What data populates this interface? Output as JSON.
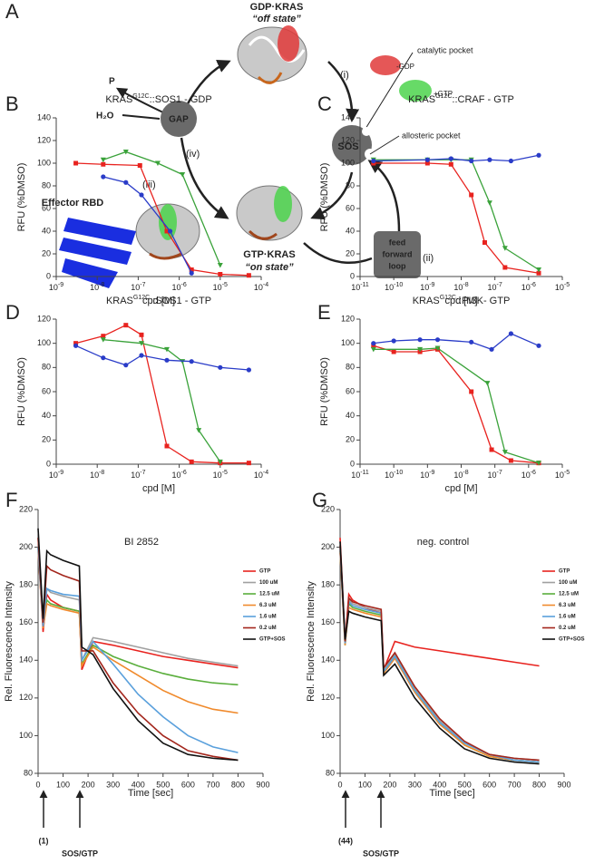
{
  "diagram": {
    "panel": "A",
    "gdp_kras": "GDP·KRAS",
    "off_state": "“off state”",
    "catalytic_pocket": "catalytic pocket",
    "minus_gdp": "-GDP",
    "plus_gtp": "+GTP",
    "step_i": "(i)",
    "sos": "SOS",
    "allosteric_pocket": "allosteric pocket",
    "gap": "GAP",
    "phosphate": "P",
    "water": "H₂O",
    "step_iv": "(iv)",
    "step_iii": "(iii)",
    "effector": "Effector RBD",
    "gtp_kras": "GTP·KRAS",
    "on_state": "“on state”",
    "feed_loop": [
      "feed",
      "forward",
      "loop"
    ],
    "step_ii": "(ii)"
  },
  "chart_data": [
    {
      "type": "scatter",
      "panel": "B",
      "title": [
        "KRAS",
        "G12C",
        "::SOS1 - GDP"
      ],
      "x_label": "cpd [M]",
      "y_label": "RFU (%DMSO)",
      "x_scale": "log",
      "xlim": [
        1e-09,
        0.0001
      ],
      "xticks": [
        {
          "value": 1e-09,
          "label": "10-9"
        },
        {
          "value": 1e-08,
          "label": "10-8"
        },
        {
          "value": 1e-07,
          "label": "10-7"
        },
        {
          "value": 1e-06,
          "label": "10-6"
        },
        {
          "value": 1e-05,
          "label": "10-5"
        },
        {
          "value": 0.0001,
          "label": "10-4"
        }
      ],
      "ylim": [
        0,
        140
      ],
      "yticks": [
        0,
        20,
        40,
        60,
        80,
        100,
        120,
        140
      ],
      "series": [
        {
          "color": "#e8231f",
          "marker": "square",
          "x": [
            3e-09,
            1.4e-08,
            1.1e-07,
            5e-07,
            2e-06,
            1e-05,
            5e-05
          ],
          "values": [
            100,
            99,
            98,
            40,
            6,
            2,
            1
          ]
        },
        {
          "color": "#2a3cc8",
          "marker": "circle",
          "x": [
            1.4e-08,
            5e-08,
            1.2e-07,
            6e-07,
            2e-06
          ],
          "values": [
            88,
            83,
            72,
            40,
            3
          ]
        },
        {
          "color": "#3aa23a",
          "marker": "triangle",
          "x": [
            1.4e-08,
            5e-08,
            3e-07,
            1.2e-06,
            1e-05
          ],
          "values": [
            103,
            110,
            100,
            90,
            10
          ]
        }
      ]
    },
    {
      "type": "scatter",
      "panel": "C",
      "title": [
        "KRAS",
        "G12C",
        "::CRAF - GTP"
      ],
      "x_label": "cpd [M]",
      "y_label": "RFU (%DMSO)",
      "x_scale": "log",
      "xlim": [
        1e-11,
        1e-05
      ],
      "xticks": [
        {
          "value": 1e-11,
          "label": "10-11"
        },
        {
          "value": 1e-10,
          "label": "10-10"
        },
        {
          "value": 1e-09,
          "label": "10-9"
        },
        {
          "value": 1e-08,
          "label": "10-8"
        },
        {
          "value": 1e-07,
          "label": "10-7"
        },
        {
          "value": 1e-06,
          "label": "10-6"
        },
        {
          "value": 1e-05,
          "label": "10-5"
        }
      ],
      "ylim": [
        0,
        140
      ],
      "yticks": [
        0,
        20,
        40,
        60,
        80,
        100,
        120,
        140
      ],
      "series": [
        {
          "color": "#e8231f",
          "marker": "square",
          "x": [
            2.5e-11,
            1e-09,
            5e-09,
            2e-08,
            5e-08,
            2e-07,
            2e-06
          ],
          "values": [
            100,
            100,
            99,
            72,
            30,
            8,
            3
          ]
        },
        {
          "color": "#3aa23a",
          "marker": "triangle",
          "x": [
            2.5e-11,
            1e-09,
            5e-09,
            2e-08,
            7e-08,
            2e-07,
            2e-06
          ],
          "values": [
            103,
            103,
            103,
            103,
            65,
            25,
            6
          ]
        },
        {
          "color": "#2a3cc8",
          "marker": "circle",
          "x": [
            2.5e-11,
            1e-09,
            5e-09,
            2e-08,
            7e-08,
            3e-07,
            2e-06
          ],
          "values": [
            102,
            103,
            104,
            102,
            103,
            102,
            107
          ]
        }
      ]
    },
    {
      "type": "scatter",
      "panel": "D",
      "title": [
        "KRAS",
        "G12C",
        "::SOS1 - GTP"
      ],
      "x_label": "cpd [M]",
      "y_label": "RFU (%DMSO)",
      "x_scale": "log",
      "xlim": [
        1e-09,
        0.0001
      ],
      "xticks": [
        {
          "value": 1e-09,
          "label": "10-9"
        },
        {
          "value": 1e-08,
          "label": "10-8"
        },
        {
          "value": 1e-07,
          "label": "10-7"
        },
        {
          "value": 1e-06,
          "label": "10-6"
        },
        {
          "value": 1e-05,
          "label": "10-5"
        },
        {
          "value": 0.0001,
          "label": "10-4"
        }
      ],
      "ylim": [
        0,
        120
      ],
      "yticks": [
        0,
        20,
        40,
        60,
        80,
        100,
        120
      ],
      "series": [
        {
          "color": "#e8231f",
          "marker": "square",
          "x": [
            3e-09,
            1.4e-08,
            5e-08,
            1.2e-07,
            5e-07,
            2e-06,
            1e-05,
            5e-05
          ],
          "values": [
            100,
            106,
            115,
            107,
            15,
            2,
            1,
            1
          ]
        },
        {
          "color": "#3aa23a",
          "marker": "triangle",
          "x": [
            1.4e-08,
            1.2e-07,
            5e-07,
            1.2e-06,
            3e-06,
            1e-05
          ],
          "values": [
            103,
            100,
            95,
            85,
            28,
            2
          ]
        },
        {
          "color": "#2a3cc8",
          "marker": "circle",
          "x": [
            3e-09,
            1.4e-08,
            5e-08,
            1.2e-07,
            5e-07,
            2e-06,
            1e-05,
            5e-05
          ],
          "values": [
            98,
            88,
            82,
            90,
            86,
            85,
            80,
            78
          ]
        }
      ]
    },
    {
      "type": "scatter",
      "panel": "E",
      "title": [
        "KRAS",
        "G12C",
        "::PI3K- GTP"
      ],
      "x_label": "cpd [M]",
      "y_label": "RFU (%DMSO)",
      "x_scale": "log",
      "xlim": [
        1e-11,
        1e-05
      ],
      "xticks": [
        {
          "value": 1e-11,
          "label": "10-11"
        },
        {
          "value": 1e-10,
          "label": "10-10"
        },
        {
          "value": 1e-09,
          "label": "10-9"
        },
        {
          "value": 1e-08,
          "label": "10-8"
        },
        {
          "value": 1e-07,
          "label": "10-7"
        },
        {
          "value": 1e-06,
          "label": "10-6"
        },
        {
          "value": 1e-05,
          "label": "10-5"
        }
      ],
      "ylim": [
        0,
        120
      ],
      "yticks": [
        0,
        20,
        40,
        60,
        80,
        100,
        120
      ],
      "series": [
        {
          "color": "#e8231f",
          "marker": "square",
          "x": [
            2.5e-11,
            1e-10,
            6e-10,
            2e-09,
            2e-08,
            8e-08,
            3e-07,
            2e-06
          ],
          "values": [
            98,
            93,
            93,
            95,
            60,
            12,
            3,
            1
          ]
        },
        {
          "color": "#3aa23a",
          "marker": "triangle",
          "x": [
            2.5e-11,
            6e-10,
            2e-09,
            6e-08,
            2e-07,
            2e-06
          ],
          "values": [
            95,
            95,
            96,
            67,
            10,
            1
          ]
        },
        {
          "color": "#2a3cc8",
          "marker": "circle",
          "x": [
            2.5e-11,
            1e-10,
            6e-10,
            2e-09,
            2e-08,
            8e-08,
            3e-07,
            2e-06
          ],
          "values": [
            100,
            102,
            103,
            103,
            101,
            95,
            108,
            98
          ]
        }
      ]
    },
    {
      "type": "line",
      "panel": "F",
      "title": "BI 2852",
      "x_label": "Time [sec]",
      "y_label": "Rel. Fluorescence Intensity",
      "annotations": [
        "(1)",
        "SOS/GTP"
      ],
      "xlim": [
        0,
        900
      ],
      "xticks": [
        0,
        100,
        200,
        300,
        400,
        500,
        600,
        700,
        800,
        900
      ],
      "ylim": [
        80,
        220
      ],
      "yticks": [
        80,
        100,
        120,
        140,
        160,
        180,
        200,
        220
      ],
      "x": [
        0,
        20,
        35,
        50,
        100,
        165,
        175,
        220,
        300,
        400,
        500,
        600,
        700,
        800
      ],
      "series": [
        {
          "name": "GTP",
          "color": "#e8231f",
          "values": [
            200,
            155,
            175,
            172,
            168,
            166,
            135,
            150,
            148,
            145,
            142,
            140,
            138,
            136
          ]
        },
        {
          "name": "100 uM",
          "color": "#a0a0a0",
          "values": [
            205,
            160,
            178,
            176,
            174,
            172,
            140,
            152,
            150,
            147,
            144,
            141,
            139,
            137
          ]
        },
        {
          "name": "12.5 uM",
          "color": "#5aae3c",
          "values": [
            200,
            158,
            172,
            170,
            168,
            166,
            138,
            148,
            142,
            137,
            133,
            130,
            128,
            127
          ]
        },
        {
          "name": "6.3 uM",
          "color": "#f08a2c",
          "values": [
            198,
            157,
            170,
            169,
            167,
            165,
            137,
            147,
            140,
            132,
            124,
            118,
            114,
            112
          ]
        },
        {
          "name": "1.6 uM",
          "color": "#5aa0dc",
          "values": [
            200,
            158,
            178,
            177,
            175,
            174,
            140,
            150,
            138,
            122,
            110,
            100,
            94,
            91
          ]
        },
        {
          "name": "0.2 uM",
          "color": "#a3261c",
          "values": [
            205,
            160,
            190,
            188,
            185,
            182,
            145,
            145,
            128,
            112,
            100,
            92,
            89,
            87
          ]
        },
        {
          "name": "GTP+SOS",
          "color": "#111111",
          "values": [
            210,
            162,
            198,
            196,
            193,
            190,
            147,
            143,
            125,
            108,
            96,
            90,
            88,
            87
          ]
        }
      ]
    },
    {
      "type": "line",
      "panel": "G",
      "title": "neg. control",
      "x_label": "Time [sec]",
      "y_label": "Rel. Fluorescence Intensity",
      "annotations": [
        "(44)",
        "SOS/GTP"
      ],
      "xlim": [
        0,
        900
      ],
      "xticks": [
        0,
        100,
        200,
        300,
        400,
        500,
        600,
        700,
        800,
        900
      ],
      "ylim": [
        80,
        220
      ],
      "yticks": [
        80,
        100,
        120,
        140,
        160,
        180,
        200,
        220
      ],
      "x": [
        0,
        20,
        35,
        50,
        100,
        165,
        175,
        220,
        300,
        400,
        500,
        600,
        700,
        800
      ],
      "series": [
        {
          "name": "GTP",
          "color": "#e8231f",
          "values": [
            205,
            150,
            175,
            172,
            168,
            165,
            135,
            150,
            147,
            145,
            143,
            141,
            139,
            137
          ]
        },
        {
          "name": "100 uM",
          "color": "#a0a0a0",
          "values": [
            200,
            150,
            172,
            170,
            168,
            166,
            135,
            143,
            125,
            108,
            96,
            90,
            88,
            87
          ]
        },
        {
          "name": "12.5 uM",
          "color": "#5aae3c",
          "values": [
            198,
            148,
            170,
            168,
            166,
            164,
            134,
            142,
            124,
            107,
            95,
            89,
            87,
            86
          ]
        },
        {
          "name": "6.3 uM",
          "color": "#f08a2c",
          "values": [
            197,
            148,
            168,
            167,
            165,
            163,
            133,
            141,
            123,
            106,
            95,
            89,
            87,
            86
          ]
        },
        {
          "name": "1.6 uM",
          "color": "#5aa0dc",
          "values": [
            199,
            149,
            171,
            169,
            167,
            165,
            134,
            142,
            124,
            107,
            96,
            90,
            87,
            86
          ]
        },
        {
          "name": "0.2 uM",
          "color": "#a3261c",
          "values": [
            201,
            150,
            173,
            171,
            169,
            167,
            136,
            144,
            126,
            109,
            97,
            90,
            88,
            87
          ]
        },
        {
          "name": "GTP+SOS",
          "color": "#111111",
          "values": [
            203,
            151,
            166,
            165,
            163,
            161,
            132,
            138,
            120,
            104,
            93,
            88,
            86,
            85
          ]
        }
      ]
    }
  ]
}
